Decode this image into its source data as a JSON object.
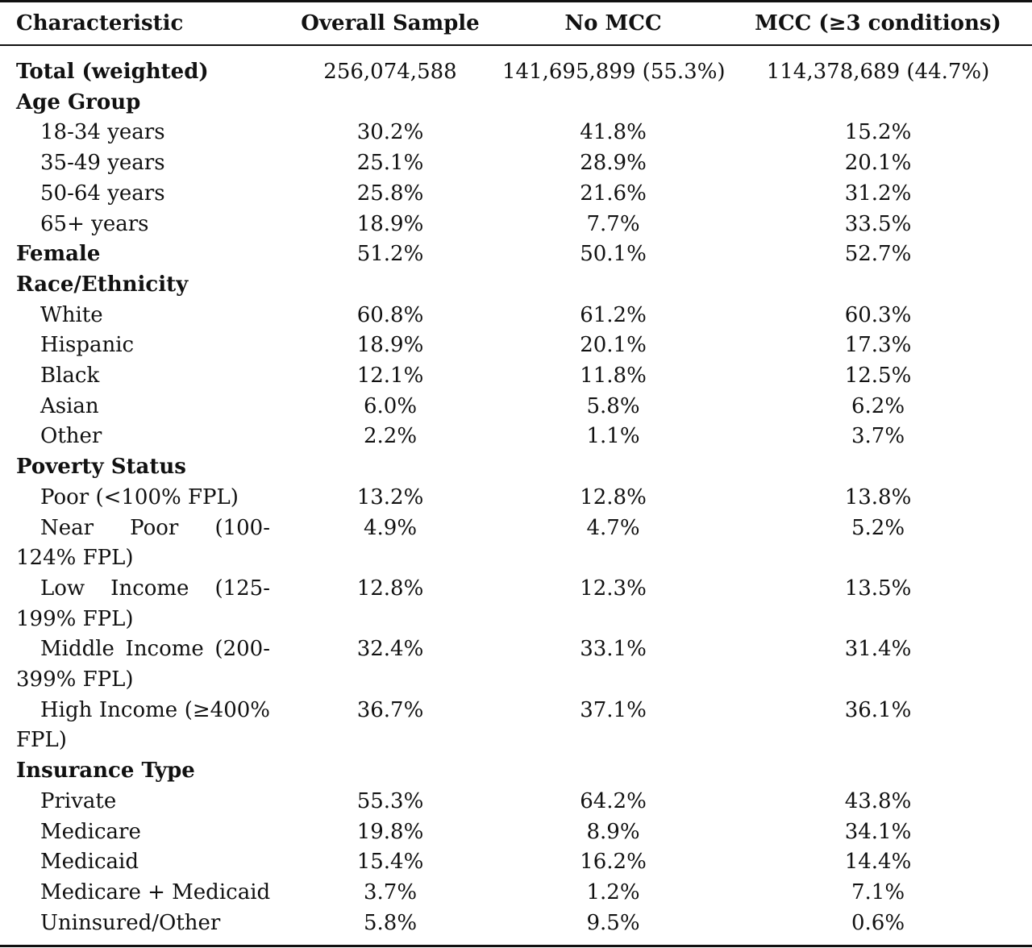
{
  "table": {
    "headers": [
      "Characteristic",
      "Overall Sample",
      "No MCC",
      "MCC (≥3 conditions)"
    ],
    "rows": [
      {
        "label": "Total (weighted)",
        "overall": "256,074,588",
        "no_mcc": "141,695,899 (55.3%)",
        "mcc": "114,378,689 (44.7%)"
      },
      {
        "label": "Age Group",
        "overall": "",
        "no_mcc": "",
        "mcc": ""
      },
      {
        "label": "18-34 years",
        "overall": "30.2%",
        "no_mcc": "41.8%",
        "mcc": "15.2%"
      },
      {
        "label": "35-49 years",
        "overall": "25.1%",
        "no_mcc": "28.9%",
        "mcc": "20.1%"
      },
      {
        "label": "50-64 years",
        "overall": "25.8%",
        "no_mcc": "21.6%",
        "mcc": "31.2%"
      },
      {
        "label": "65+ years",
        "overall": "18.9%",
        "no_mcc": "7.7%",
        "mcc": "33.5%"
      },
      {
        "label": "Female",
        "overall": "51.2%",
        "no_mcc": "50.1%",
        "mcc": "52.7%"
      },
      {
        "label": "Race/Ethnicity",
        "overall": "",
        "no_mcc": "",
        "mcc": ""
      },
      {
        "label": "White",
        "overall": "60.8%",
        "no_mcc": "61.2%",
        "mcc": "60.3%"
      },
      {
        "label": "Hispanic",
        "overall": "18.9%",
        "no_mcc": "20.1%",
        "mcc": "17.3%"
      },
      {
        "label": "Black",
        "overall": "12.1%",
        "no_mcc": "11.8%",
        "mcc": "12.5%"
      },
      {
        "label": "Asian",
        "overall": "6.0%",
        "no_mcc": "5.8%",
        "mcc": "6.2%"
      },
      {
        "label": "Other",
        "overall": "2.2%",
        "no_mcc": "1.1%",
        "mcc": "3.7%"
      },
      {
        "label": "Poverty Status",
        "overall": "",
        "no_mcc": "",
        "mcc": ""
      },
      {
        "label": "Poor (<100% FPL)",
        "overall": "13.2%",
        "no_mcc": "12.8%",
        "mcc": "13.8%"
      },
      {
        "label": "Near Poor (100-124% FPL)",
        "overall": "4.9%",
        "no_mcc": "4.7%",
        "mcc": "5.2%"
      },
      {
        "label": "Low Income (125-199% FPL)",
        "overall": "12.8%",
        "no_mcc": "12.3%",
        "mcc": "13.5%"
      },
      {
        "label": "Middle Income (200-399% FPL)",
        "overall": "32.4%",
        "no_mcc": "33.1%",
        "mcc": "31.4%"
      },
      {
        "label": "High Income (≥400% FPL)",
        "overall": "36.7%",
        "no_mcc": "37.1%",
        "mcc": "36.1%"
      },
      {
        "label": "Insurance Type",
        "overall": "",
        "no_mcc": "",
        "mcc": ""
      },
      {
        "label": "Private",
        "overall": "55.3%",
        "no_mcc": "64.2%",
        "mcc": "43.8%"
      },
      {
        "label": "Medicare",
        "overall": "19.8%",
        "no_mcc": "8.9%",
        "mcc": "34.1%"
      },
      {
        "label": "Medicaid",
        "overall": "15.4%",
        "no_mcc": "16.2%",
        "mcc": "14.4%"
      },
      {
        "label": "Medicare + Medicaid",
        "overall": "3.7%",
        "no_mcc": "1.2%",
        "mcc": "7.1%"
      },
      {
        "label": "Uninsured/Other",
        "overall": "5.8%",
        "no_mcc": "9.5%",
        "mcc": "0.6%"
      }
    ]
  }
}
